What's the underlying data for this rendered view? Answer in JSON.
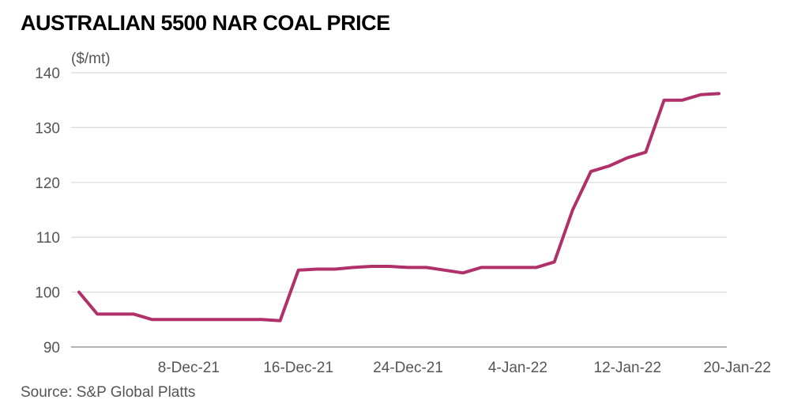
{
  "chart_data": {
    "type": "line",
    "title": "AUSTRALIAN 5500 NAR COAL PRICE",
    "unit_label": "($/mt)",
    "source": "Source: S&P Global Platts",
    "ylim": [
      90,
      140
    ],
    "yticks": [
      90,
      100,
      110,
      120,
      130,
      140
    ],
    "xtick_labels": [
      {
        "label": "8-Dec-21",
        "index": 6
      },
      {
        "label": "16-Dec-21",
        "index": 12
      },
      {
        "label": "24-Dec-21",
        "index": 18
      },
      {
        "label": "4-Jan-22",
        "index": 24
      },
      {
        "label": "12-Jan-22",
        "index": 30
      },
      {
        "label": "20-Jan-22",
        "index": 36
      }
    ],
    "grid": true,
    "line_color": "#b0306a",
    "series": [
      {
        "values": [
          100,
          96,
          96,
          96,
          95,
          95,
          95,
          95,
          95,
          95,
          95,
          94.8,
          104,
          104.2,
          104.2,
          104.5,
          104.7,
          104.7,
          104.5,
          104.5,
          104,
          103.5,
          104.5,
          104.5,
          104.5,
          104.5,
          105.5,
          115,
          122,
          123,
          124.5,
          125.5,
          135,
          135,
          136,
          136.2
        ]
      }
    ]
  }
}
